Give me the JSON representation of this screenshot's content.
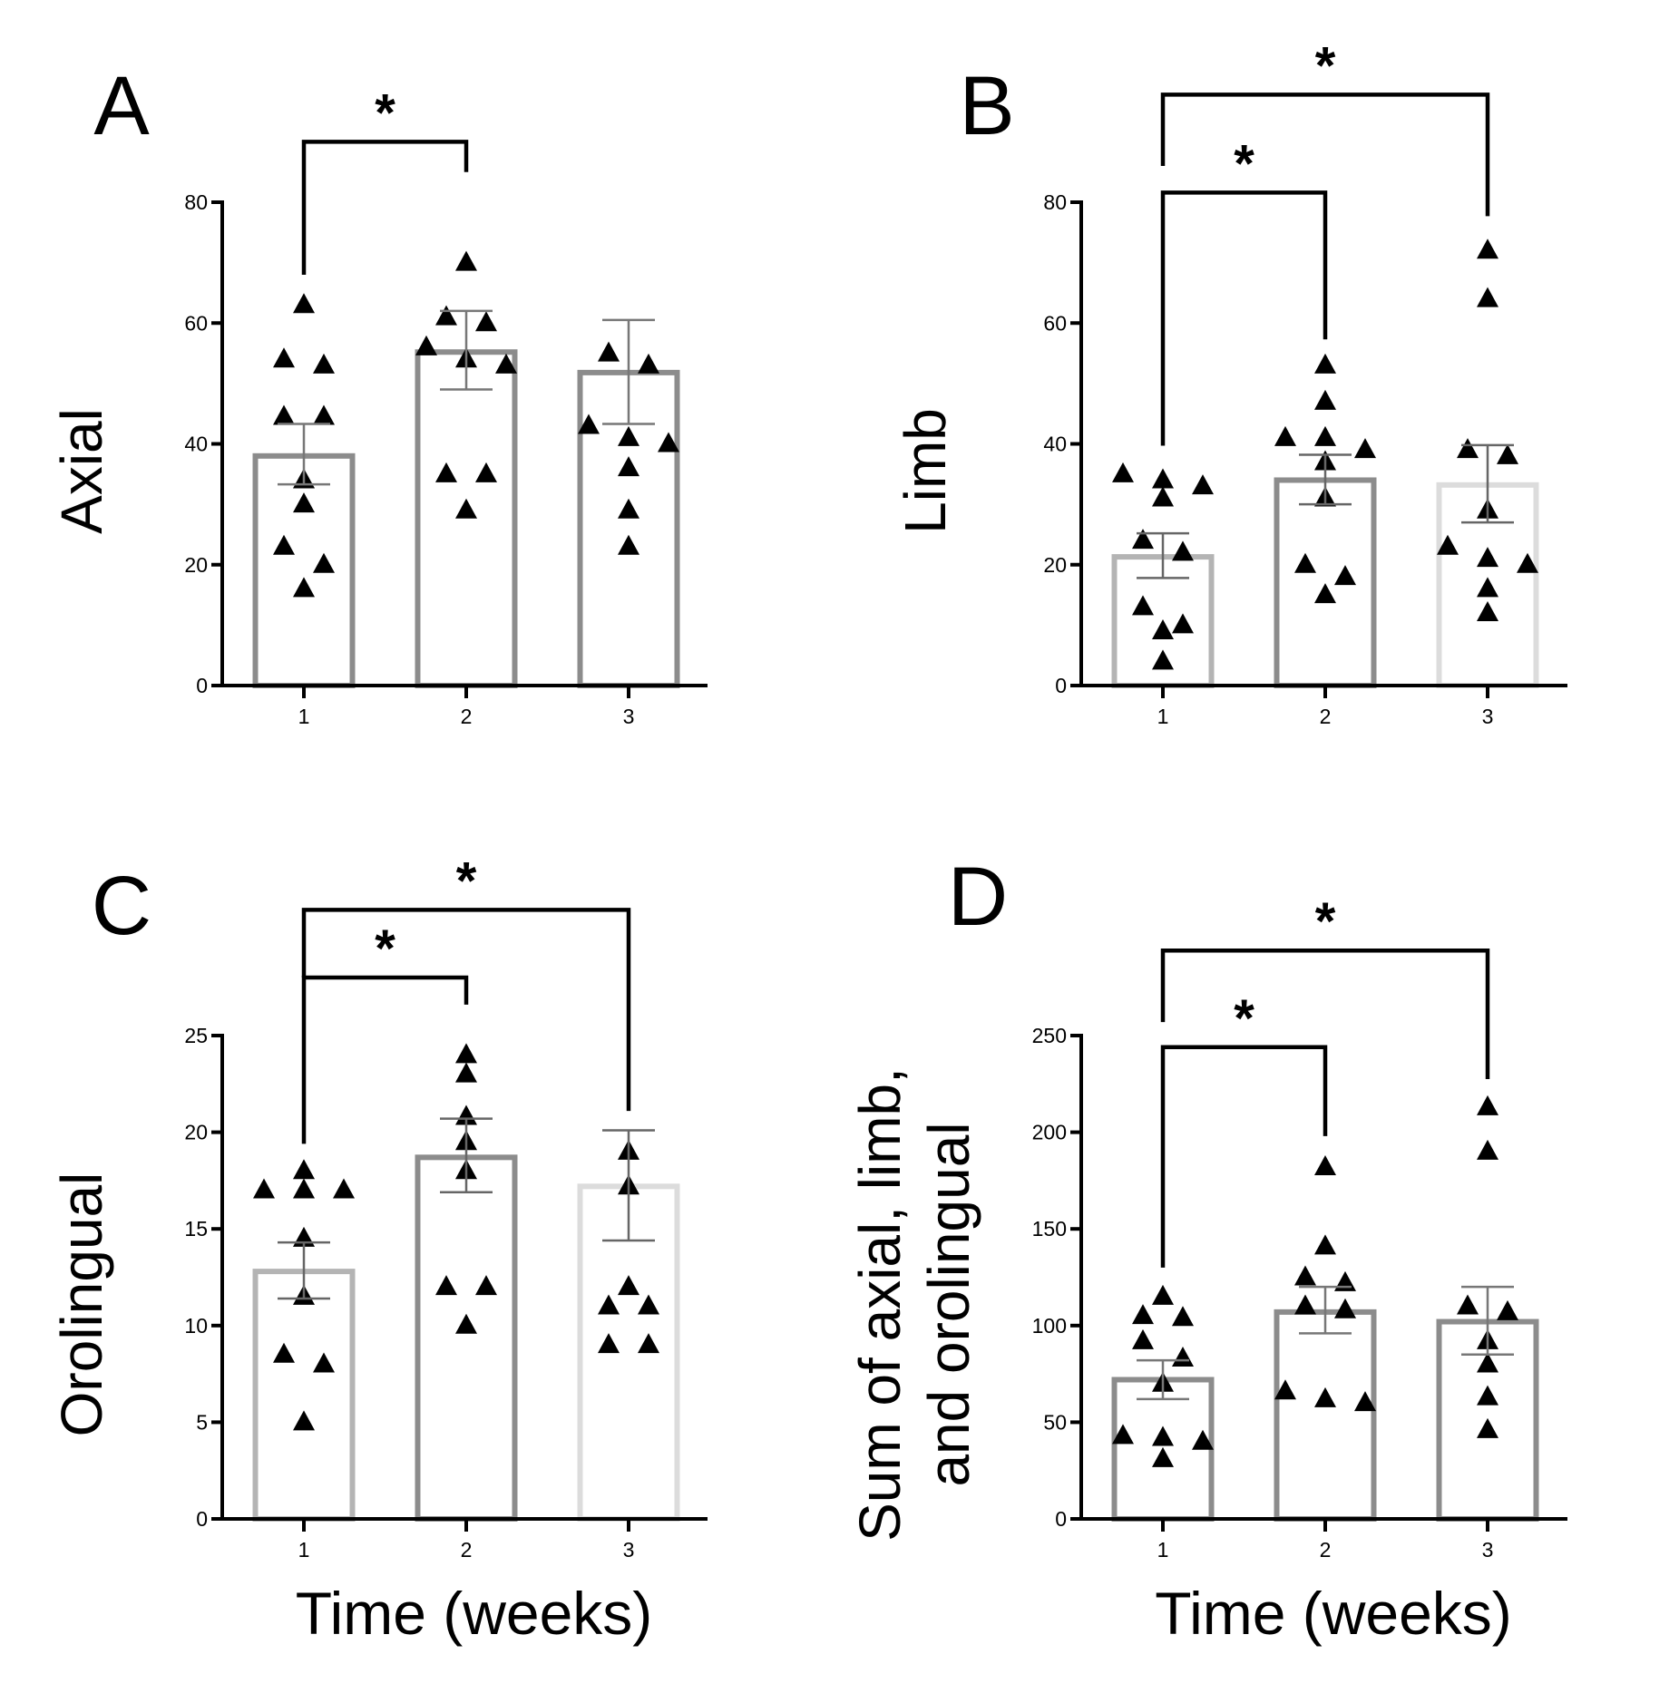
{
  "chart_data": [
    {
      "type": "bar",
      "panel": "A",
      "ylabel": [
        "Axial"
      ],
      "xlabel": "",
      "categories": [
        "1",
        "2",
        "3"
      ],
      "ylim": [
        0,
        80
      ],
      "yticks": [
        0,
        20,
        40,
        60,
        80
      ],
      "bar_colors": [
        "#8c8c8c",
        "#8c8c8c",
        "#8c8c8c"
      ],
      "means": [
        38,
        55.2,
        51.8
      ],
      "sem": [
        [
          33.3,
          43.3
        ],
        [
          49,
          62
        ],
        [
          43.3,
          60.5
        ]
      ],
      "points": [
        [
          63,
          53,
          54,
          44.5,
          44.5,
          34,
          30,
          23,
          20,
          16
        ],
        [
          70,
          60,
          61,
          54,
          56,
          53,
          35,
          35,
          29
        ],
        [
          53,
          55,
          43,
          40,
          41,
          36,
          29,
          23
        ]
      ],
      "significance": [
        {
          "from": 1,
          "to": 2,
          "level": 90,
          "left_end": 68,
          "right_end": 85,
          "label": "*"
        }
      ]
    },
    {
      "type": "bar",
      "panel": "B",
      "ylabel": [
        "Limb"
      ],
      "xlabel": "",
      "categories": [
        "1",
        "2",
        "3"
      ],
      "ylim": [
        0,
        80
      ],
      "yticks": [
        0,
        20,
        40,
        60,
        80
      ],
      "bar_colors": [
        "#b4b4b4",
        "#8c8c8c",
        "#dcdcdc"
      ],
      "means": [
        21.3,
        34,
        33.2
      ],
      "sem": [
        [
          17.8,
          25.2
        ],
        [
          30,
          38.2
        ],
        [
          27,
          39.8
        ]
      ],
      "points": [
        [
          35,
          33,
          34,
          31,
          24,
          22,
          13,
          9,
          10,
          4
        ],
        [
          53,
          47,
          41,
          41,
          39,
          37,
          31,
          20,
          18,
          15
        ],
        [
          72,
          64,
          39,
          38,
          29,
          23,
          21,
          20,
          16,
          12
        ]
      ],
      "significance": [
        {
          "from": 1,
          "to": 2,
          "level": 81.6,
          "left_end": 39.7,
          "right_end": 57.3,
          "label": "*"
        },
        {
          "from": 1,
          "to": 3,
          "level": 97.8,
          "left_end": 86,
          "right_end": 77.7,
          "label": "*"
        }
      ]
    },
    {
      "type": "bar",
      "panel": "C",
      "ylabel": [
        "Orolingual"
      ],
      "xlabel": "Time (weeks)",
      "categories": [
        "1",
        "2",
        "3"
      ],
      "ylim": [
        0,
        25
      ],
      "yticks": [
        0,
        5,
        10,
        15,
        20,
        25
      ],
      "bar_colors": [
        "#b4b4b4",
        "#8c8c8c",
        "#dcdcdc"
      ],
      "means": [
        12.8,
        18.7,
        17.2
      ],
      "sem": [
        [
          11.4,
          14.3
        ],
        [
          16.9,
          20.7
        ],
        [
          14.4,
          20.1
        ]
      ],
      "points": [
        [
          18,
          17,
          17,
          17,
          14.5,
          11.5,
          8.5,
          8,
          5
        ],
        [
          24,
          23,
          20.8,
          19.5,
          18,
          12,
          12,
          10
        ],
        [
          19,
          17.2,
          12,
          11,
          11,
          9,
          9
        ]
      ],
      "significance": [
        {
          "from": 1,
          "to": 2,
          "level": 28,
          "left_end": 19.4,
          "right_end": 26.6,
          "label": "*"
        },
        {
          "from": 1,
          "to": 3,
          "level": 31.5,
          "left_end": 28,
          "right_end": 21.1,
          "label": "*"
        }
      ]
    },
    {
      "type": "bar",
      "panel": "D",
      "ylabel": [
        "Sum of axial, limb,",
        "and orolingual"
      ],
      "xlabel": "Time (weeks)",
      "categories": [
        "1",
        "2",
        "3"
      ],
      "ylim": [
        0,
        250
      ],
      "yticks": [
        0,
        50,
        100,
        150,
        200,
        250
      ],
      "bar_colors": [
        "#8c8c8c",
        "#8c8c8c",
        "#8c8c8c"
      ],
      "means": [
        72,
        107,
        102
      ],
      "sem": [
        [
          62,
          82
        ],
        [
          96,
          120
        ],
        [
          85,
          120
        ]
      ],
      "points": [
        [
          115,
          104,
          105,
          92,
          83,
          70,
          42,
          43,
          40,
          31
        ],
        [
          182,
          141,
          125,
          122,
          110,
          108,
          66,
          62,
          60
        ],
        [
          213,
          190,
          110,
          107,
          92,
          80,
          63,
          46
        ]
      ],
      "significance": [
        {
          "from": 1,
          "to": 2,
          "level": 244,
          "left_end": 130,
          "right_end": 198,
          "label": "*"
        },
        {
          "from": 1,
          "to": 3,
          "level": 294,
          "left_end": 257,
          "right_end": 227.5,
          "label": "*"
        }
      ]
    }
  ]
}
